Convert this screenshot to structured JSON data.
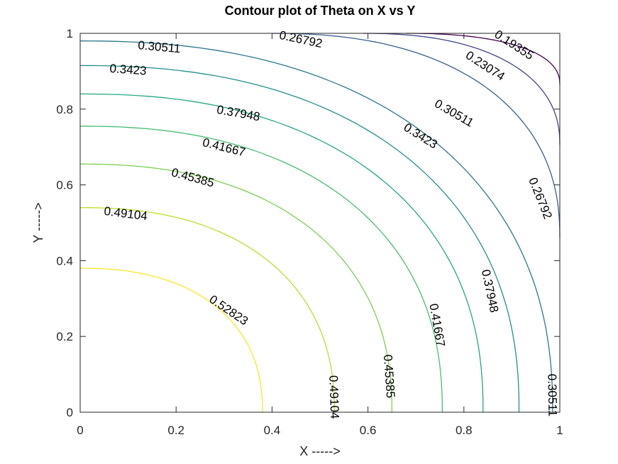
{
  "chart_data": {
    "type": "contour",
    "title": "Contour plot of Theta on X vs Y",
    "xlabel": "X ----->",
    "ylabel": "Y ----->",
    "xlim": [
      0,
      1
    ],
    "ylim": [
      0,
      1
    ],
    "x_ticks": [
      "0",
      "0.2",
      "0.4",
      "0.6",
      "0.8",
      "1"
    ],
    "y_ticks": [
      "0",
      "0.2",
      "0.4",
      "0.6",
      "0.8",
      "1"
    ],
    "grid": false,
    "colormap": "viridis",
    "levels": [
      {
        "value": 0.52823,
        "label": "0.52823",
        "color": "#FDE725",
        "x_at_y0": 0.38,
        "y_at_x0": 0.38
      },
      {
        "value": 0.49104,
        "label": "0.49104",
        "color": "#BBDF27",
        "x_at_y0": 0.53,
        "y_at_x0": 0.54
      },
      {
        "value": 0.45385,
        "label": "0.45385",
        "color": "#7AD151",
        "x_at_y0": 0.65,
        "y_at_x0": 0.655
      },
      {
        "value": 0.41667,
        "label": "0.41667",
        "color": "#43BF71",
        "x_at_y0": 0.755,
        "y_at_x0": 0.755
      },
      {
        "value": 0.37948,
        "label": "0.37948",
        "color": "#22A884",
        "x_at_y0": 0.84,
        "y_at_x0": 0.84
      },
      {
        "value": 0.3423,
        "label": "0.3423",
        "color": "#21918C",
        "x_at_y0": 0.915,
        "y_at_x0": 0.915
      },
      {
        "value": 0.30511,
        "label": "0.30511",
        "color": "#2A788E",
        "x_at_y0": 0.985,
        "y_at_x0": 0.98
      },
      {
        "value": 0.26792,
        "label": "0.26792",
        "color": "#355F8D",
        "x_at_y1": 0.4,
        "y_at_x1": 0.46
      },
      {
        "value": 0.23074,
        "label": "0.23074",
        "color": "#414487",
        "x_at_y1": 0.59,
        "y_at_x1": 0.705
      },
      {
        "value": 0.19355,
        "label": "0.19355",
        "color": "#440154",
        "x_at_y1": 0.68,
        "y_at_x1": 0.865
      }
    ],
    "contour_labels": [
      {
        "text": "0.30511",
        "x": 0.165,
        "y": 0.965,
        "angle": 5
      },
      {
        "text": "0.26792",
        "x": 0.46,
        "y": 0.985,
        "angle": 12
      },
      {
        "text": "0.19355",
        "x": 0.905,
        "y": 0.97,
        "angle": 33
      },
      {
        "text": "0.23074",
        "x": 0.845,
        "y": 0.915,
        "angle": 33
      },
      {
        "text": "0.3423",
        "x": 0.1,
        "y": 0.905,
        "angle": 4
      },
      {
        "text": "0.30511",
        "x": 0.78,
        "y": 0.79,
        "angle": 30
      },
      {
        "text": "0.37948",
        "x": 0.33,
        "y": 0.79,
        "angle": 10
      },
      {
        "text": "0.3423",
        "x": 0.71,
        "y": 0.73,
        "angle": 32
      },
      {
        "text": "0.41667",
        "x": 0.3,
        "y": 0.7,
        "angle": 14
      },
      {
        "text": "0.45385",
        "x": 0.235,
        "y": 0.62,
        "angle": 15
      },
      {
        "text": "0.26792",
        "x": 0.96,
        "y": 0.565,
        "angle": 68
      },
      {
        "text": "0.49104",
        "x": 0.095,
        "y": 0.525,
        "angle": 7
      },
      {
        "text": "0.37948",
        "x": 0.855,
        "y": 0.32,
        "angle": 78
      },
      {
        "text": "0.52823",
        "x": 0.31,
        "y": 0.27,
        "angle": 34
      },
      {
        "text": "0.41667",
        "x": 0.745,
        "y": 0.23,
        "angle": 80
      },
      {
        "text": "0.45385",
        "x": 0.645,
        "y": 0.095,
        "angle": 86
      },
      {
        "text": "0.49104",
        "x": 0.53,
        "y": 0.04,
        "angle": 88
      },
      {
        "text": "0.30511",
        "x": 0.985,
        "y": 0.045,
        "angle": 89
      }
    ]
  }
}
